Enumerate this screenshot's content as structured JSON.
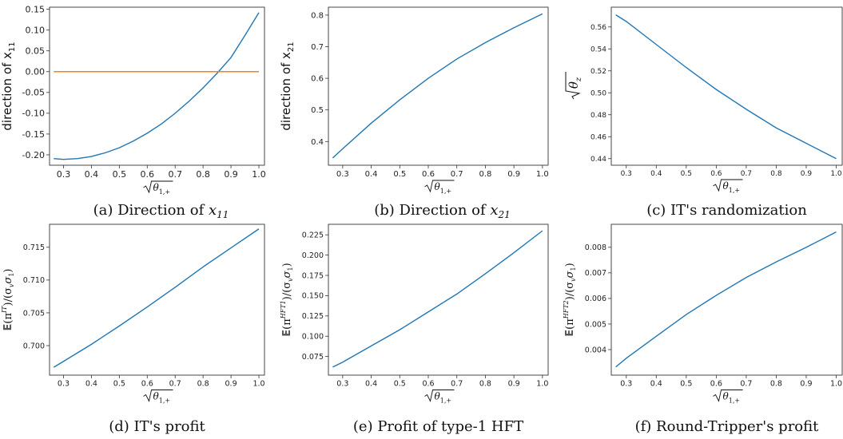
{
  "chart_data": [
    {
      "id": "a",
      "type": "line",
      "caption": "(a) Direction of x11",
      "caption_parts": {
        "prefix": "(a) Direction of ",
        "var": "x",
        "sub": "11"
      },
      "ylabel_parts": {
        "prefix": "direction of ",
        "var": "x",
        "sub": "11"
      },
      "xlabel": "√θ1,+",
      "xlim": [
        0.25,
        1.02
      ],
      "ylim": [
        -0.225,
        0.155
      ],
      "xticks": [
        0.3,
        0.4,
        0.5,
        0.6,
        0.7,
        0.8,
        0.9,
        1.0
      ],
      "xtick_labels": [
        "0.3",
        "0.4",
        "0.5",
        "0.6",
        "0.7",
        "0.8",
        "0.9",
        "1.0"
      ],
      "yticks": [
        -0.2,
        -0.15,
        -0.1,
        -0.05,
        0.0,
        0.05,
        0.1,
        0.15
      ],
      "ytick_labels": [
        "-0.20",
        "-0.15",
        "-0.10",
        "-0.05",
        "0.00",
        "0.05",
        "0.10",
        "0.15"
      ],
      "series": [
        {
          "color": "#1f77b4",
          "x": [
            0.265,
            0.3,
            0.35,
            0.4,
            0.45,
            0.5,
            0.55,
            0.6,
            0.65,
            0.7,
            0.75,
            0.8,
            0.85,
            0.9,
            0.95,
            1.0
          ],
          "y": [
            -0.209,
            -0.211,
            -0.209,
            -0.204,
            -0.195,
            -0.183,
            -0.167,
            -0.148,
            -0.126,
            -0.1,
            -0.071,
            -0.039,
            -0.004,
            0.034,
            0.087,
            0.142
          ]
        },
        {
          "color": "#ff7f0e",
          "x": [
            0.265,
            1.0
          ],
          "y": [
            0.0,
            0.0
          ]
        }
      ]
    },
    {
      "id": "b",
      "type": "line",
      "caption": "(b) Direction of x21",
      "caption_parts": {
        "prefix": "(b) Direction of ",
        "var": "x",
        "sub": "21"
      },
      "ylabel_parts": {
        "prefix": "direction of ",
        "var": "x",
        "sub": "21"
      },
      "xlabel": "√θ1,+",
      "xlim": [
        0.25,
        1.02
      ],
      "ylim": [
        0.325,
        0.825
      ],
      "xticks": [
        0.3,
        0.4,
        0.5,
        0.6,
        0.7,
        0.8,
        0.9,
        1.0
      ],
      "xtick_labels": [
        "0.3",
        "0.4",
        "0.5",
        "0.6",
        "0.7",
        "0.8",
        "0.9",
        "1.0"
      ],
      "yticks": [
        0.4,
        0.5,
        0.6,
        0.7,
        0.8
      ],
      "ytick_labels": [
        "0.4",
        "0.5",
        "0.6",
        "0.7",
        "0.8"
      ],
      "series": [
        {
          "color": "#1f77b4",
          "x": [
            0.265,
            0.3,
            0.4,
            0.5,
            0.6,
            0.7,
            0.8,
            0.9,
            1.0
          ],
          "y": [
            0.348,
            0.377,
            0.458,
            0.532,
            0.6,
            0.661,
            0.713,
            0.76,
            0.804
          ]
        }
      ]
    },
    {
      "id": "c",
      "type": "line",
      "caption": "(c) IT's randomization",
      "ylabel": "√θz",
      "xlabel": "√θ1,+",
      "xlim": [
        0.25,
        1.02
      ],
      "ylim": [
        0.434,
        0.578
      ],
      "xticks": [
        0.3,
        0.4,
        0.5,
        0.6,
        0.7,
        0.8,
        0.9,
        1.0
      ],
      "xtick_labels": [
        "0.3",
        "0.4",
        "0.5",
        "0.6",
        "0.7",
        "0.8",
        "0.9",
        "1.0"
      ],
      "yticks": [
        0.44,
        0.46,
        0.48,
        0.5,
        0.52,
        0.54,
        0.56
      ],
      "ytick_labels": [
        "0.44",
        "0.46",
        "0.48",
        "0.50",
        "0.52",
        "0.54",
        "0.56"
      ],
      "series": [
        {
          "color": "#1f77b4",
          "x": [
            0.265,
            0.3,
            0.4,
            0.5,
            0.6,
            0.7,
            0.8,
            0.9,
            1.0
          ],
          "y": [
            0.571,
            0.565,
            0.544,
            0.523,
            0.503,
            0.485,
            0.468,
            0.454,
            0.44
          ]
        }
      ]
    },
    {
      "id": "d",
      "type": "line",
      "caption": "(d) IT's profit",
      "ylabel": "E(π^IT)/(σvσ1)",
      "ylabel_parts": {
        "sup": "IT"
      },
      "xlabel": "√θ1,+",
      "xlim": [
        0.25,
        1.02
      ],
      "ylim": [
        0.6955,
        0.7185
      ],
      "xticks": [
        0.3,
        0.4,
        0.5,
        0.6,
        0.7,
        0.8,
        0.9,
        1.0
      ],
      "xtick_labels": [
        "0.3",
        "0.4",
        "0.5",
        "0.6",
        "0.7",
        "0.8",
        "0.9",
        "1.0"
      ],
      "yticks": [
        0.7,
        0.705,
        0.71,
        0.715
      ],
      "ytick_labels": [
        "0.700",
        "0.705",
        "0.710",
        "0.715"
      ],
      "series": [
        {
          "color": "#1f77b4",
          "x": [
            0.265,
            0.3,
            0.4,
            0.5,
            0.6,
            0.7,
            0.8,
            0.9,
            1.0
          ],
          "y": [
            0.6967,
            0.6976,
            0.7002,
            0.703,
            0.7059,
            0.7089,
            0.712,
            0.7149,
            0.7178
          ]
        }
      ]
    },
    {
      "id": "e",
      "type": "line",
      "caption": "(e) Profit of type-1 HFT",
      "ylabel": "E(π^HFT1)/(σvσ1)",
      "ylabel_parts": {
        "sup": "HFT1"
      },
      "xlabel": "√θ1,+",
      "xlim": [
        0.25,
        1.02
      ],
      "ylim": [
        0.052,
        0.238
      ],
      "xticks": [
        0.3,
        0.4,
        0.5,
        0.6,
        0.7,
        0.8,
        0.9,
        1.0
      ],
      "xtick_labels": [
        "0.3",
        "0.4",
        "0.5",
        "0.6",
        "0.7",
        "0.8",
        "0.9",
        "1.0"
      ],
      "yticks": [
        0.075,
        0.1,
        0.125,
        0.15,
        0.175,
        0.2,
        0.225
      ],
      "ytick_labels": [
        "0.075",
        "0.100",
        "0.125",
        "0.150",
        "0.175",
        "0.200",
        "0.225"
      ],
      "series": [
        {
          "color": "#1f77b4",
          "x": [
            0.265,
            0.3,
            0.4,
            0.5,
            0.6,
            0.7,
            0.8,
            0.9,
            1.0
          ],
          "y": [
            0.062,
            0.068,
            0.088,
            0.108,
            0.13,
            0.152,
            0.177,
            0.203,
            0.23
          ]
        }
      ]
    },
    {
      "id": "f",
      "type": "line",
      "caption": "(f) Round-Tripper's profit",
      "ylabel": "E(π^HFT2)/(σvσ1)",
      "ylabel_parts": {
        "sup": "HFT2"
      },
      "xlabel": "√θ1,+",
      "xlim": [
        0.25,
        1.02
      ],
      "ylim": [
        0.003,
        0.0089
      ],
      "xticks": [
        0.3,
        0.4,
        0.5,
        0.6,
        0.7,
        0.8,
        0.9,
        1.0
      ],
      "xtick_labels": [
        "0.3",
        "0.4",
        "0.5",
        "0.6",
        "0.7",
        "0.8",
        "0.9",
        "1.0"
      ],
      "yticks": [
        0.004,
        0.005,
        0.006,
        0.007,
        0.008
      ],
      "ytick_labels": [
        "0.004",
        "0.005",
        "0.006",
        "0.007",
        "0.008"
      ],
      "series": [
        {
          "color": "#1f77b4",
          "x": [
            0.265,
            0.3,
            0.4,
            0.5,
            0.6,
            0.7,
            0.8,
            0.9,
            1.0
          ],
          "y": [
            0.00332,
            0.00366,
            0.00452,
            0.00537,
            0.00612,
            0.00682,
            0.00743,
            0.008,
            0.0086
          ]
        }
      ]
    }
  ]
}
